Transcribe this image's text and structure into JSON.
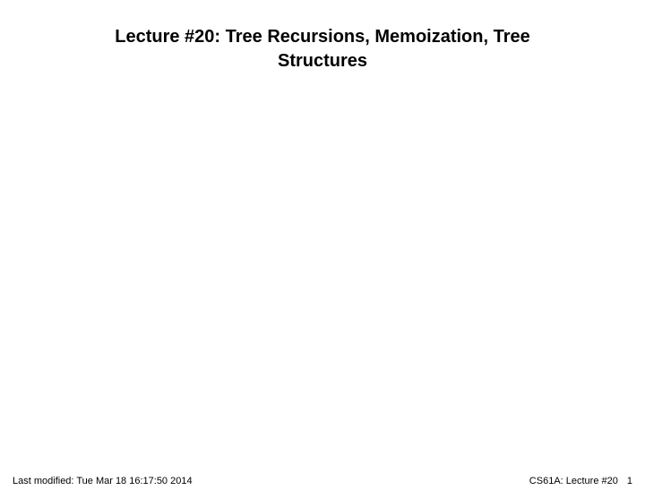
{
  "title": {
    "line1": "Lecture #20: Tree Recursions, Memoization, Tree",
    "line2": "Structures",
    "fontsize": 20,
    "color": "#000000"
  },
  "footer": {
    "left": "Last modified: Tue Mar 18 16:17:50 2014",
    "right_course": "CS61A: Lecture #20",
    "right_page": "1",
    "fontsize": 11,
    "color": "#000000"
  },
  "background_color": "#ffffff"
}
